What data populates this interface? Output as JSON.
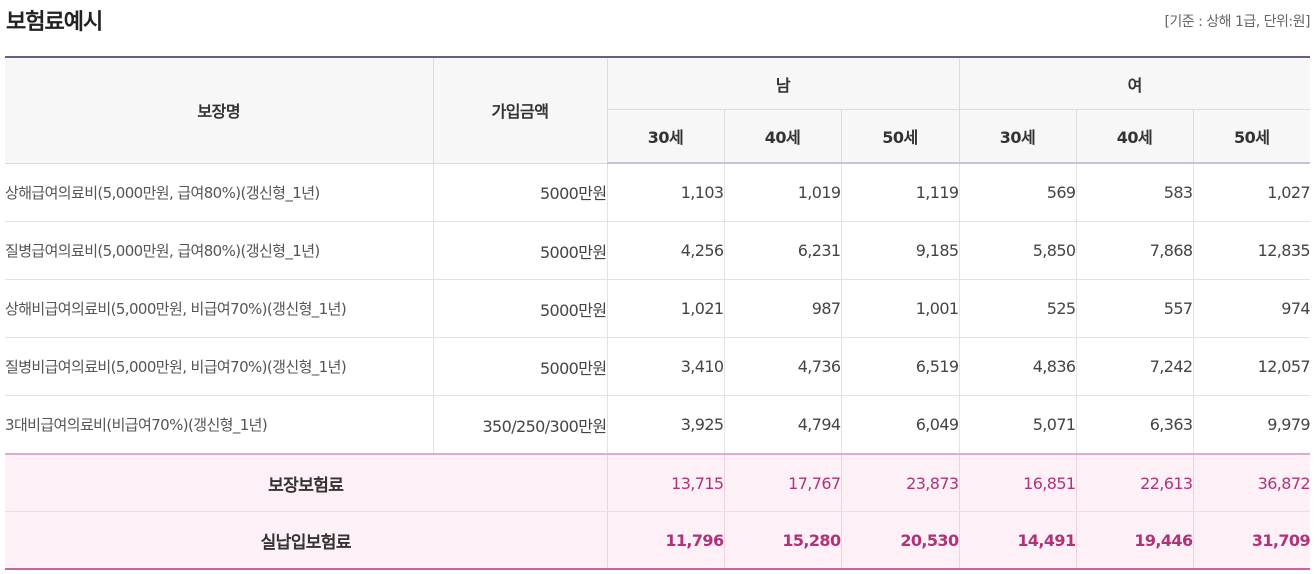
{
  "title": "보험료예시",
  "note": "[기준 : 상해 1급, 단위:원]",
  "headers": {
    "coverage": "보장명",
    "amount": "가입금액",
    "male": "남",
    "female": "여",
    "ages": [
      "30세",
      "40세",
      "50세",
      "30세",
      "40세",
      "50세"
    ]
  },
  "rows": [
    {
      "name": "상해급여의료비(5,000만원, 급여80%)(갱신형_1년)",
      "amount": "5000만원",
      "values": [
        "1,103",
        "1,019",
        "1,119",
        "569",
        "583",
        "1,027"
      ]
    },
    {
      "name": "질병급여의료비(5,000만원, 급여80%)(갱신형_1년)",
      "amount": "5000만원",
      "values": [
        "4,256",
        "6,231",
        "9,185",
        "5,850",
        "7,868",
        "12,835"
      ]
    },
    {
      "name": "상해비급여의료비(5,000만원, 비급여70%)(갱신형_1년)",
      "amount": "5000만원",
      "values": [
        "1,021",
        "987",
        "1,001",
        "525",
        "557",
        "974"
      ]
    },
    {
      "name": "질병비급여의료비(5,000만원, 비급여70%)(갱신형_1년)",
      "amount": "5000만원",
      "values": [
        "3,410",
        "4,736",
        "6,519",
        "4,836",
        "7,242",
        "12,057"
      ]
    },
    {
      "name": "3대비급여의료비(비급여70%)(갱신형_1년)",
      "amount": "350/250/300만원",
      "values": [
        "3,925",
        "4,794",
        "6,049",
        "5,071",
        "6,363",
        "9,979"
      ]
    }
  ],
  "totals": [
    {
      "label": "보장보험료",
      "values": [
        "13,715",
        "17,767",
        "23,873",
        "16,851",
        "22,613",
        "36,872"
      ]
    },
    {
      "label": "실납입보험료",
      "values": [
        "11,796",
        "15,280",
        "20,530",
        "14,491",
        "19,446",
        "31,709"
      ]
    }
  ]
}
